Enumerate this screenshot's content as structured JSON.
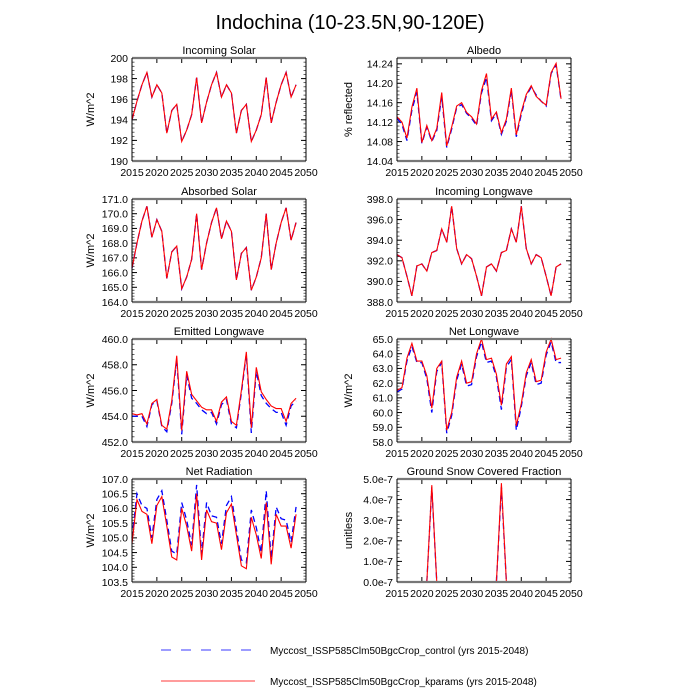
{
  "figure": {
    "title": "Indochina (10-23.5N,90-120E)"
  },
  "legend": {
    "placement": "bottom-center",
    "entries": [
      {
        "name": "Myccost_ISSP585Clm50BgcCrop_control (yrs 2015-2048)",
        "color": "#0000ff",
        "style": "dashed"
      },
      {
        "name": "Myccost_ISSP585Clm50BgcCrop_kparams (yrs 2015-2048)",
        "color": "#ff0000",
        "style": "solid"
      }
    ]
  },
  "chart_data": [
    {
      "type": "line",
      "title": "Incoming Solar",
      "xlabel": "",
      "ylabel": "W/m^2",
      "xlim": [
        2015,
        2050
      ],
      "ylim": [
        190,
        200
      ],
      "xticks": [
        "2015",
        "2020",
        "2025",
        "2030",
        "2035",
        "2040",
        "2045",
        "2050"
      ],
      "yticks": [
        "190",
        "192",
        "194",
        "196",
        "198",
        "200"
      ],
      "x_start": 2015,
      "series": [
        {
          "name": "control",
          "values": [
            194.0,
            195.8,
            197.4,
            198.6,
            196.2,
            197.4,
            196.6,
            192.7,
            194.9,
            195.5,
            191.9,
            193.0,
            194.5,
            198.1,
            193.7,
            195.7,
            197.4,
            198.6,
            196.2,
            197.4,
            196.6,
            192.7,
            194.9,
            195.5,
            191.9,
            193.0,
            194.5,
            198.1,
            193.7,
            195.7,
            197.4,
            198.6,
            196.2,
            197.4
          ]
        },
        {
          "name": "kparams",
          "values": [
            194.0,
            195.8,
            197.4,
            198.6,
            196.2,
            197.4,
            196.6,
            192.7,
            194.9,
            195.5,
            191.9,
            193.0,
            194.5,
            198.1,
            193.7,
            195.7,
            197.4,
            198.6,
            196.2,
            197.4,
            196.6,
            192.7,
            194.9,
            195.5,
            191.9,
            193.0,
            194.5,
            198.1,
            193.7,
            195.7,
            197.4,
            198.6,
            196.2,
            197.4
          ]
        }
      ]
    },
    {
      "type": "line",
      "title": "Albedo",
      "xlabel": "",
      "ylabel": "% reflected",
      "xlim": [
        2015,
        2050
      ],
      "ylim": [
        14.04,
        14.252
      ],
      "xticks": [
        "2015",
        "2020",
        "2025",
        "2030",
        "2035",
        "2040",
        "2045",
        "2050"
      ],
      "yticks": [
        "14.04",
        "14.08",
        "14.12",
        "14.16",
        "14.20",
        "14.24"
      ],
      "x_start": 2015,
      "series": [
        {
          "name": "control",
          "values": [
            14.128,
            14.115,
            14.082,
            14.145,
            14.182,
            14.076,
            14.11,
            14.08,
            14.103,
            14.172,
            14.068,
            14.106,
            14.15,
            14.156,
            14.138,
            14.128,
            14.113,
            14.18,
            14.212,
            14.123,
            14.138,
            14.095,
            14.122,
            14.186,
            14.09,
            14.136,
            14.174,
            14.192,
            14.176,
            14.163,
            14.153,
            14.22,
            14.238,
            14.166
          ]
        },
        {
          "name": "kparams",
          "values": [
            14.131,
            14.12,
            14.087,
            14.151,
            14.19,
            14.078,
            14.113,
            14.082,
            14.107,
            14.181,
            14.071,
            14.11,
            14.153,
            14.16,
            14.14,
            14.131,
            14.116,
            14.185,
            14.22,
            14.126,
            14.141,
            14.098,
            14.126,
            14.19,
            14.094,
            14.141,
            14.177,
            14.195,
            14.173,
            14.163,
            14.155,
            14.222,
            14.241,
            14.168
          ]
        }
      ]
    },
    {
      "type": "line",
      "title": "Absorbed Solar",
      "xlabel": "",
      "ylabel": "W/m^2",
      "xlim": [
        2015,
        2050
      ],
      "ylim": [
        164.0,
        171.0
      ],
      "xticks": [
        "2015",
        "2020",
        "2025",
        "2030",
        "2035",
        "2040",
        "2045",
        "2050"
      ],
      "yticks": [
        "164.0",
        "165.0",
        "166.0",
        "167.0",
        "168.0",
        "169.0",
        "170.0",
        "171.0"
      ],
      "x_start": 2015,
      "series": [
        {
          "name": "control",
          "values": [
            166.3,
            168.0,
            169.5,
            170.5,
            168.4,
            169.6,
            168.8,
            165.6,
            167.4,
            167.8,
            164.9,
            165.7,
            166.9,
            170.0,
            166.2,
            168.0,
            169.4,
            170.4,
            168.3,
            169.5,
            168.8,
            165.5,
            167.3,
            167.7,
            164.8,
            165.7,
            167.0,
            170.0,
            166.2,
            168.0,
            169.4,
            170.4,
            168.2,
            169.4
          ]
        },
        {
          "name": "kparams",
          "values": [
            166.3,
            168.0,
            169.5,
            170.5,
            168.4,
            169.6,
            168.8,
            165.6,
            167.4,
            167.8,
            164.9,
            165.7,
            166.9,
            170.0,
            166.2,
            168.0,
            169.4,
            170.4,
            168.3,
            169.5,
            168.8,
            165.5,
            167.3,
            167.7,
            164.8,
            165.7,
            167.0,
            170.0,
            166.2,
            168.0,
            169.4,
            170.4,
            168.2,
            169.4
          ]
        }
      ]
    },
    {
      "type": "line",
      "title": "Incoming Longwave",
      "xlabel": "",
      "ylabel": "",
      "xlim": [
        2015,
        2050
      ],
      "ylim": [
        388.0,
        398.0
      ],
      "xticks": [
        "2015",
        "2020",
        "2025",
        "2030",
        "2035",
        "2040",
        "2045",
        "2050"
      ],
      "yticks": [
        "388.0",
        "390.0",
        "392.0",
        "394.0",
        "396.0",
        "398.0"
      ],
      "x_start": 2015,
      "series": [
        {
          "name": "control",
          "values": [
            392.6,
            392.3,
            390.5,
            388.6,
            391.5,
            391.7,
            391.0,
            392.8,
            393.0,
            395.1,
            393.8,
            397.3,
            393.2,
            391.7,
            392.6,
            392.2,
            390.5,
            388.6,
            391.4,
            391.7,
            391.0,
            392.8,
            393.0,
            395.1,
            393.8,
            397.3,
            393.2,
            391.7,
            392.6,
            392.3,
            390.5,
            388.6,
            391.4,
            391.7
          ]
        },
        {
          "name": "kparams",
          "values": [
            392.6,
            392.3,
            390.5,
            388.6,
            391.5,
            391.7,
            391.0,
            392.8,
            393.0,
            395.1,
            393.8,
            397.3,
            393.2,
            391.7,
            392.6,
            392.2,
            390.5,
            388.6,
            391.4,
            391.7,
            391.0,
            392.8,
            393.0,
            395.1,
            393.8,
            397.3,
            393.2,
            391.7,
            392.6,
            392.3,
            390.5,
            388.6,
            391.4,
            391.7
          ]
        }
      ]
    },
    {
      "type": "line",
      "title": "Emitted Longwave",
      "xlabel": "",
      "ylabel": "W/m^2",
      "xlim": [
        2015,
        2050
      ],
      "ylim": [
        452.0,
        460.0
      ],
      "xticks": [
        "2015",
        "2020",
        "2025",
        "2030",
        "2035",
        "2040",
        "2045",
        "2050"
      ],
      "yticks": [
        "452.0",
        "454.0",
        "456.0",
        "458.0",
        "460.0"
      ],
      "x_start": 2015,
      "series": [
        {
          "name": "control",
          "values": [
            454.0,
            454.0,
            454.0,
            453.2,
            454.9,
            455.2,
            453.2,
            452.8,
            455.0,
            458.4,
            452.6,
            457.2,
            455.4,
            455.0,
            454.5,
            454.2,
            454.3,
            453.4,
            454.9,
            455.3,
            453.4,
            453.1,
            455.8,
            458.8,
            452.7,
            457.5,
            455.6,
            455.0,
            454.6,
            454.3,
            454.3,
            453.3,
            454.8,
            455.2
          ]
        },
        {
          "name": "kparams",
          "values": [
            454.2,
            454.1,
            454.2,
            453.4,
            455.0,
            455.3,
            453.3,
            453.0,
            455.2,
            458.7,
            452.9,
            457.5,
            455.7,
            455.2,
            454.7,
            454.5,
            454.5,
            453.6,
            455.1,
            455.5,
            453.6,
            453.3,
            456.0,
            459.0,
            453.1,
            457.8,
            455.9,
            455.3,
            454.8,
            454.6,
            454.6,
            453.6,
            455.0,
            455.4
          ]
        }
      ]
    },
    {
      "type": "line",
      "title": "Net Longwave",
      "xlabel": "",
      "ylabel": "W/m^2",
      "xlim": [
        2015,
        2050
      ],
      "ylim": [
        58.0,
        65.0
      ],
      "xticks": [
        "2015",
        "2020",
        "2025",
        "2030",
        "2035",
        "2040",
        "2045",
        "2050"
      ],
      "yticks": [
        "58.0",
        "59.0",
        "60.0",
        "61.0",
        "62.0",
        "63.0",
        "64.0",
        "65.0"
      ],
      "x_start": 2015,
      "series": [
        {
          "name": "control",
          "values": [
            61.4,
            61.6,
            63.5,
            64.5,
            63.4,
            63.4,
            62.3,
            60.0,
            62.8,
            63.4,
            58.6,
            59.8,
            62.2,
            63.3,
            61.8,
            61.9,
            63.8,
            64.8,
            63.4,
            63.5,
            62.4,
            60.2,
            63.1,
            63.6,
            58.8,
            60.4,
            62.5,
            63.4,
            61.9,
            62.0,
            63.9,
            64.8,
            63.4,
            63.4
          ]
        },
        {
          "name": "kparams",
          "values": [
            61.5,
            61.7,
            63.7,
            64.7,
            63.5,
            63.5,
            62.5,
            60.3,
            63.0,
            63.5,
            58.8,
            60.0,
            62.4,
            63.5,
            62.0,
            62.1,
            64.0,
            65.0,
            63.6,
            63.7,
            62.6,
            60.5,
            63.3,
            63.8,
            59.1,
            60.6,
            62.7,
            63.6,
            62.1,
            62.2,
            64.1,
            65.0,
            63.6,
            63.7
          ]
        }
      ]
    },
    {
      "type": "line",
      "title": "Net Radiation",
      "xlabel": "",
      "ylabel": "W/m^2",
      "xlim": [
        2015,
        2050
      ],
      "ylim": [
        103.5,
        107.0
      ],
      "xticks": [
        "2015",
        "2020",
        "2025",
        "2030",
        "2035",
        "2040",
        "2045",
        "2050"
      ],
      "yticks": [
        "103.5",
        "104.0",
        "104.5",
        "105.0",
        "105.5",
        "106.0",
        "106.5",
        "107.0"
      ],
      "x_start": 2015,
      "series": [
        {
          "name": "control",
          "values": [
            105.0,
            106.5,
            106.1,
            106.0,
            105.0,
            106.3,
            106.6,
            105.6,
            104.55,
            104.45,
            106.2,
            105.6,
            104.75,
            106.8,
            104.45,
            106.2,
            105.75,
            105.7,
            104.8,
            106.1,
            106.4,
            105.3,
            104.25,
            104.15,
            105.95,
            105.35,
            104.5,
            106.6,
            104.3,
            106.05,
            105.65,
            105.6,
            104.85,
            106.05
          ]
        },
        {
          "name": "kparams",
          "values": [
            104.8,
            106.3,
            105.9,
            105.8,
            104.8,
            106.1,
            106.4,
            105.4,
            104.35,
            104.25,
            106.0,
            105.4,
            104.55,
            106.5,
            104.25,
            105.95,
            105.55,
            105.5,
            104.6,
            105.85,
            106.15,
            105.1,
            104.05,
            103.95,
            105.7,
            105.1,
            104.3,
            106.2,
            104.1,
            105.8,
            105.4,
            105.4,
            104.65,
            105.8
          ]
        }
      ]
    },
    {
      "type": "line",
      "title": "Ground Snow Covered Fraction",
      "xlabel": "",
      "ylabel": "unitless",
      "xlim": [
        2015,
        2050
      ],
      "ylim": [
        0,
        5e-07
      ],
      "xticks": [
        "2015",
        "2020",
        "2025",
        "2030",
        "2035",
        "2040",
        "2045",
        "2050"
      ],
      "yticks": [
        "0.0e-7",
        "1.0e-7",
        "2.0e-7",
        "3.0e-7",
        "4.0e-7",
        "5.0e-7"
      ],
      "x_start": 2015,
      "series": [
        {
          "name": "control",
          "values": [
            0,
            0,
            0,
            0,
            0,
            0,
            0,
            4.6e-07,
            0,
            0,
            0,
            0,
            0,
            0,
            0,
            0,
            0,
            0,
            0,
            0,
            0,
            4.6e-07,
            0,
            0,
            0,
            0,
            0,
            0,
            0,
            0,
            0,
            0,
            0,
            0
          ]
        },
        {
          "name": "kparams",
          "values": [
            0,
            0,
            0,
            0,
            0,
            0,
            0,
            4.7e-07,
            0,
            0,
            0,
            0,
            0,
            0,
            0,
            0,
            0,
            0,
            0,
            0,
            0,
            4.8e-07,
            0,
            0,
            0,
            0,
            0,
            0,
            0,
            0,
            0,
            0,
            0,
            0
          ]
        }
      ]
    }
  ]
}
